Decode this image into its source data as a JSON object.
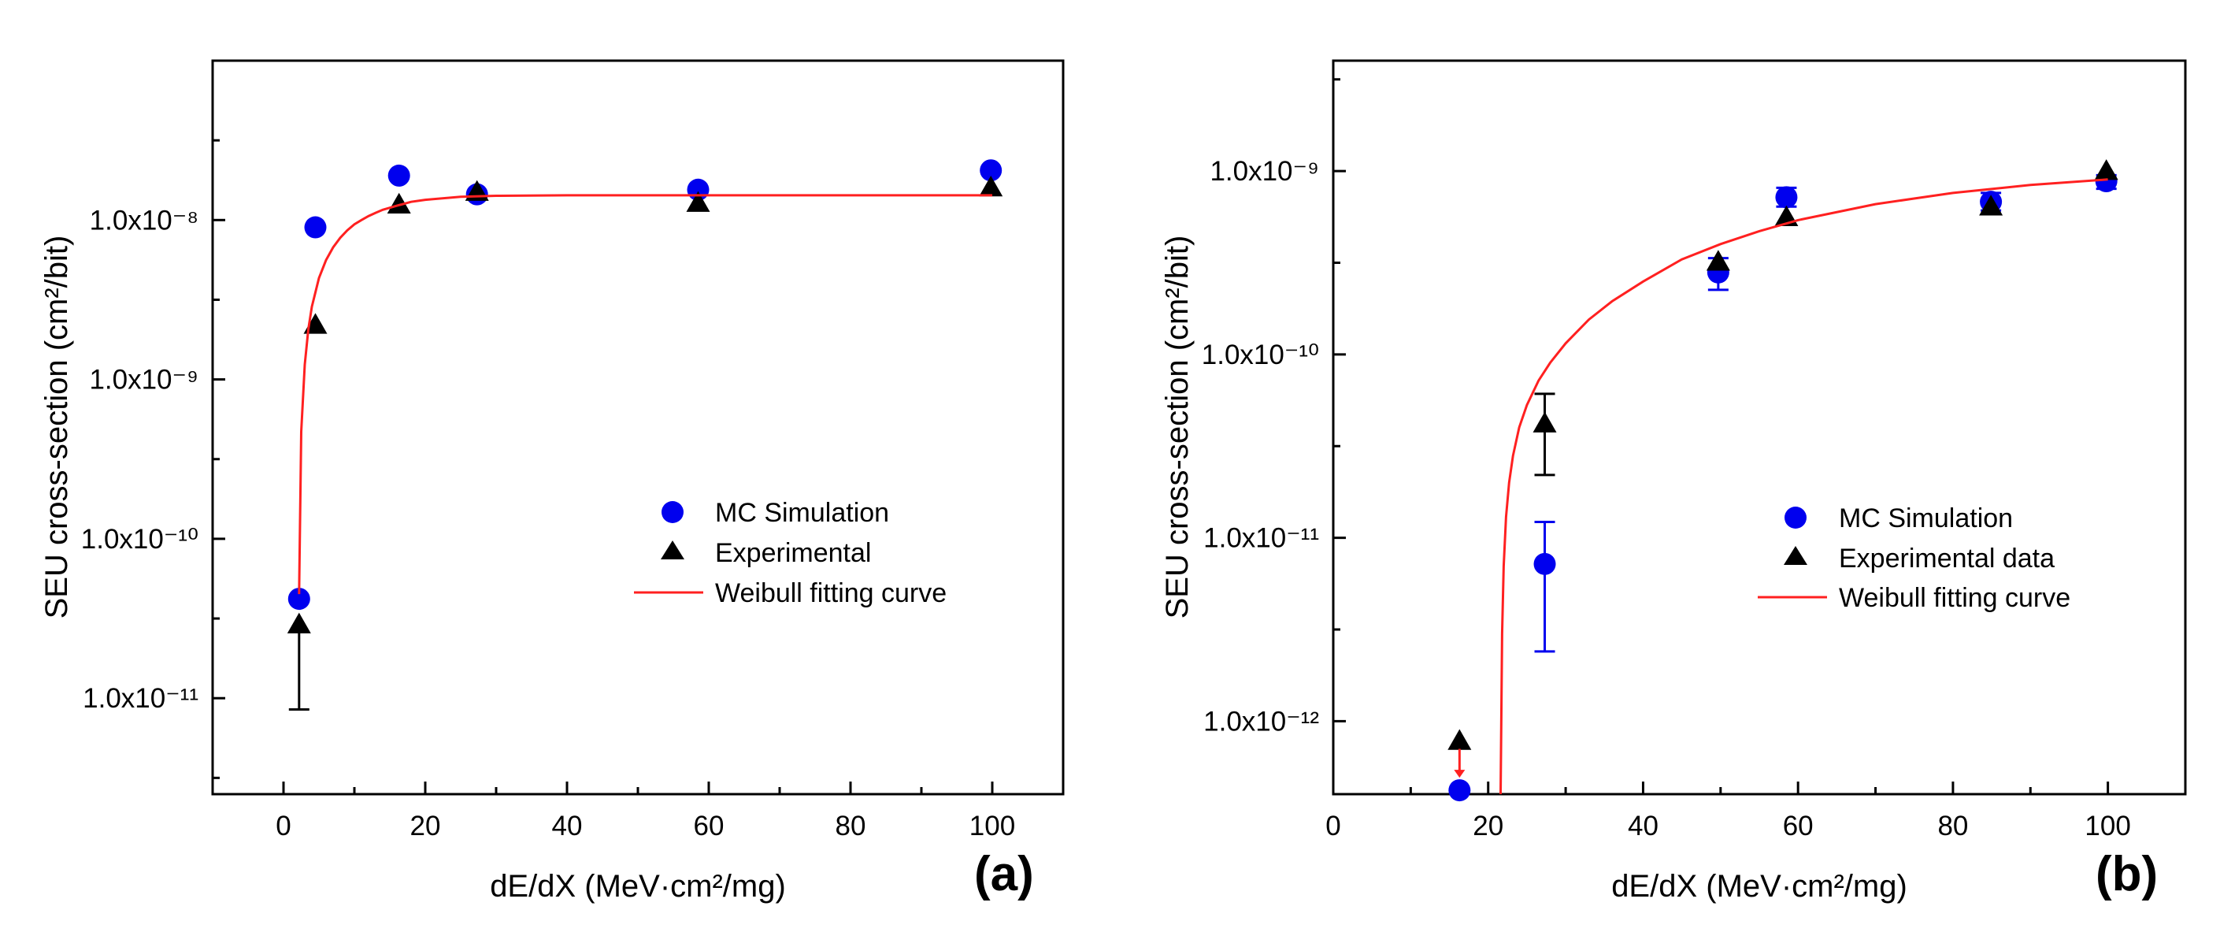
{
  "chart_data": [
    {
      "type": "scatter",
      "panel_label": "(a)",
      "xlabel": "dE/dX (MeV·cm²/mg)",
      "ylabel": "SEU cross-section (cm²/bit)",
      "xlim": [
        -10,
        110
      ],
      "xticks": [
        "0",
        "20",
        "40",
        "60",
        "80",
        "100"
      ],
      "ylim": [
        2.5e-12,
        1e-07
      ],
      "yscale": "log",
      "yticks": [
        "1.0x10⁻¹¹",
        "1.0x10⁻¹⁰",
        "1.0x10⁻⁹",
        "1.0x10⁻⁸"
      ],
      "grid": false,
      "legend_position": "center-right",
      "series": [
        {
          "name": "MC Simulation",
          "marker": "circle",
          "color": "#0000ee",
          "x": [
            2.2,
            4.5,
            16.3,
            27.3,
            58.5,
            99.8
          ],
          "y": [
            4.2e-11,
            9e-09,
            1.9e-08,
            1.45e-08,
            1.55e-08,
            2.05e-08
          ]
        },
        {
          "name": "Experimental",
          "marker": "triangle",
          "color": "#000000",
          "x": [
            2.2,
            4.5,
            16.3,
            27.3,
            58.5,
            99.8
          ],
          "y": [
            2.9e-11,
            2.2e-09,
            1.25e-08,
            1.5e-08,
            1.28e-08,
            1.6e-08
          ],
          "err_low": [
            8.5e-12,
            null,
            null,
            null,
            null,
            null
          ],
          "err_high": [
            null,
            null,
            null,
            null,
            null,
            null
          ]
        },
        {
          "name": "Weibull fitting curve",
          "line": true,
          "color": "#ff2020",
          "x": [
            2.2,
            2.5,
            3.0,
            3.5,
            4.0,
            5.0,
            6.0,
            7.0,
            8.0,
            9.0,
            10.0,
            11.0,
            12.0,
            13.0,
            14.0,
            16.0,
            18.0,
            20.0,
            25.0,
            30.0,
            40.0,
            60.0,
            80.0,
            100.0
          ],
          "y": [
            4.5e-11,
            4.7e-10,
            1.24e-09,
            2.06e-09,
            2.86e-09,
            4.32e-09,
            5.6e-09,
            6.74e-09,
            7.74e-09,
            8.62e-09,
            9.4e-09,
            1e-08,
            1.06e-08,
            1.11e-08,
            1.16e-08,
            1.23e-08,
            1.3e-08,
            1.34e-08,
            1.4e-08,
            1.42e-08,
            1.43e-08,
            1.43e-08,
            1.43e-08,
            1.43e-08
          ]
        }
      ]
    },
    {
      "type": "scatter",
      "panel_label": "(b)",
      "xlabel": "dE/dX (MeV·cm²/mg)",
      "ylabel": "SEU cross-section (cm²/bit)",
      "xlim": [
        0,
        110
      ],
      "xticks": [
        "0",
        "20",
        "40",
        "60",
        "80",
        "100"
      ],
      "ylim": [
        4e-13,
        4e-09
      ],
      "yscale": "log",
      "yticks": [
        "1.0x10⁻¹²",
        "1.0x10⁻¹¹",
        "1.0x10⁻¹⁰",
        "1.0x10⁻⁹"
      ],
      "grid": false,
      "legend_position": "center-right",
      "series": [
        {
          "name": "MC Simulation",
          "marker": "circle",
          "color": "#0000ee",
          "x": [
            16.3,
            27.3,
            49.7,
            58.5,
            84.9,
            99.8
          ],
          "y": [
            4.2e-13,
            7.2e-12,
            2.8e-10,
            7.2e-10,
            6.8e-10,
            8.8e-10
          ],
          "err_low": [
            null,
            2.4e-12,
            2.25e-10,
            6.4e-10,
            6.1e-10,
            8e-10
          ],
          "err_high": [
            null,
            1.22e-11,
            3.35e-10,
            8.1e-10,
            7.6e-10,
            9.5e-10
          ]
        },
        {
          "name": "Experimental data",
          "marker": "triangle",
          "color": "#000000",
          "x": [
            16.3,
            27.3,
            49.7,
            58.5,
            84.9,
            99.8
          ],
          "y": [
            7.8e-13,
            4.2e-11,
            3.2e-10,
            5.6e-10,
            6.4e-10,
            1e-09
          ],
          "err_low": [
            null,
            2.2e-11,
            null,
            null,
            null,
            null
          ],
          "err_high": [
            null,
            6.1e-11,
            null,
            null,
            null,
            null
          ]
        },
        {
          "name": "Weibull fitting curve",
          "line": true,
          "color": "#ff2020",
          "x": [
            21.6,
            21.8,
            22.0,
            22.3,
            22.7,
            23.2,
            24.0,
            25.0,
            26.5,
            28.0,
            30.0,
            33.0,
            36.0,
            40.0,
            45.0,
            50.0,
            55.0,
            60.0,
            70.0,
            80.0,
            90.0,
            100.0
          ],
          "y": [
            4e-13,
            3e-12,
            7e-12,
            1.3e-11,
            2e-11,
            2.8e-11,
            4e-11,
            5.3e-11,
            7.2e-11,
            9e-11,
            1.15e-10,
            1.55e-10,
            1.95e-10,
            2.5e-10,
            3.3e-10,
            4e-10,
            4.7e-10,
            5.4e-10,
            6.6e-10,
            7.6e-10,
            8.4e-10,
            9e-10
          ]
        }
      ]
    }
  ]
}
